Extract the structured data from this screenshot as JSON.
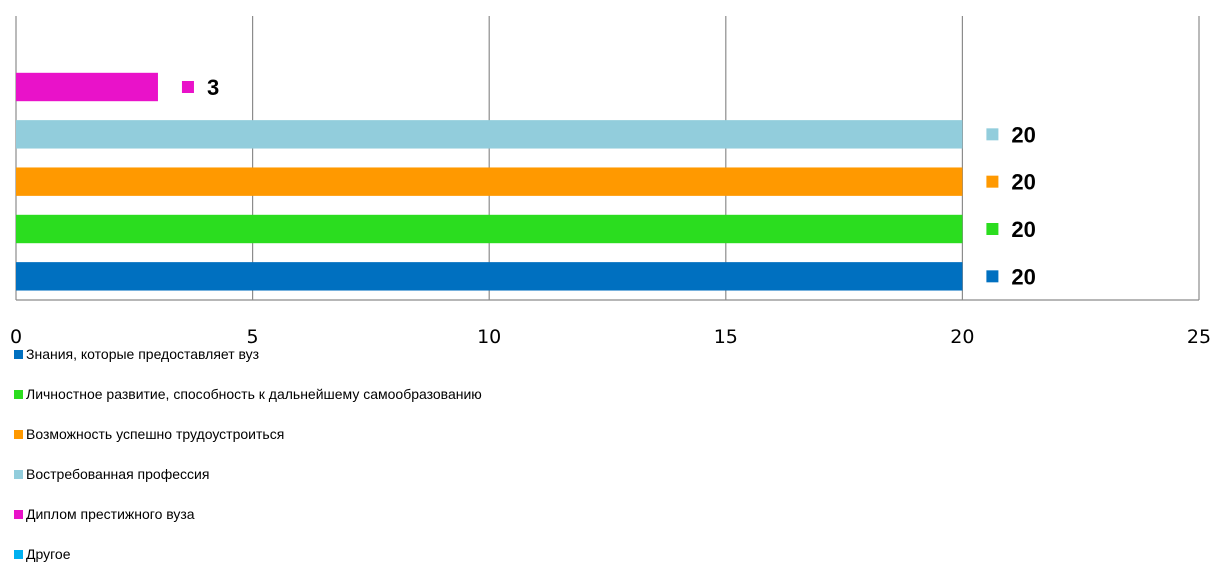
{
  "chart_data": {
    "type": "bar",
    "orientation": "horizontal",
    "xlim": [
      0,
      25
    ],
    "x_ticks": [
      "0",
      "5",
      "10",
      "15",
      "20",
      "25"
    ],
    "grid": true,
    "legend_position": "bottom-left",
    "series": [
      {
        "name": "Знания, которые предоставляет вуз",
        "value": 20,
        "label": "20",
        "color": "#0070c0"
      },
      {
        "name": "Личностное развитие, способность к дальнейшему самообразованию",
        "value": 20,
        "label": "20",
        "color": "#2bdd1f"
      },
      {
        "name": "Возможность успешно трудоустроиться",
        "value": 20,
        "label": "20",
        "color": "#ff9900"
      },
      {
        "name": "Востребованная профессия",
        "value": 20,
        "label": "20",
        "color": "#92cddc"
      },
      {
        "name": "Диплом престижного вуза",
        "value": 3,
        "label": "3",
        "color": "#e912c9"
      },
      {
        "name": "Другое",
        "value": 0,
        "label": "",
        "color": "#00b0f0"
      }
    ]
  }
}
